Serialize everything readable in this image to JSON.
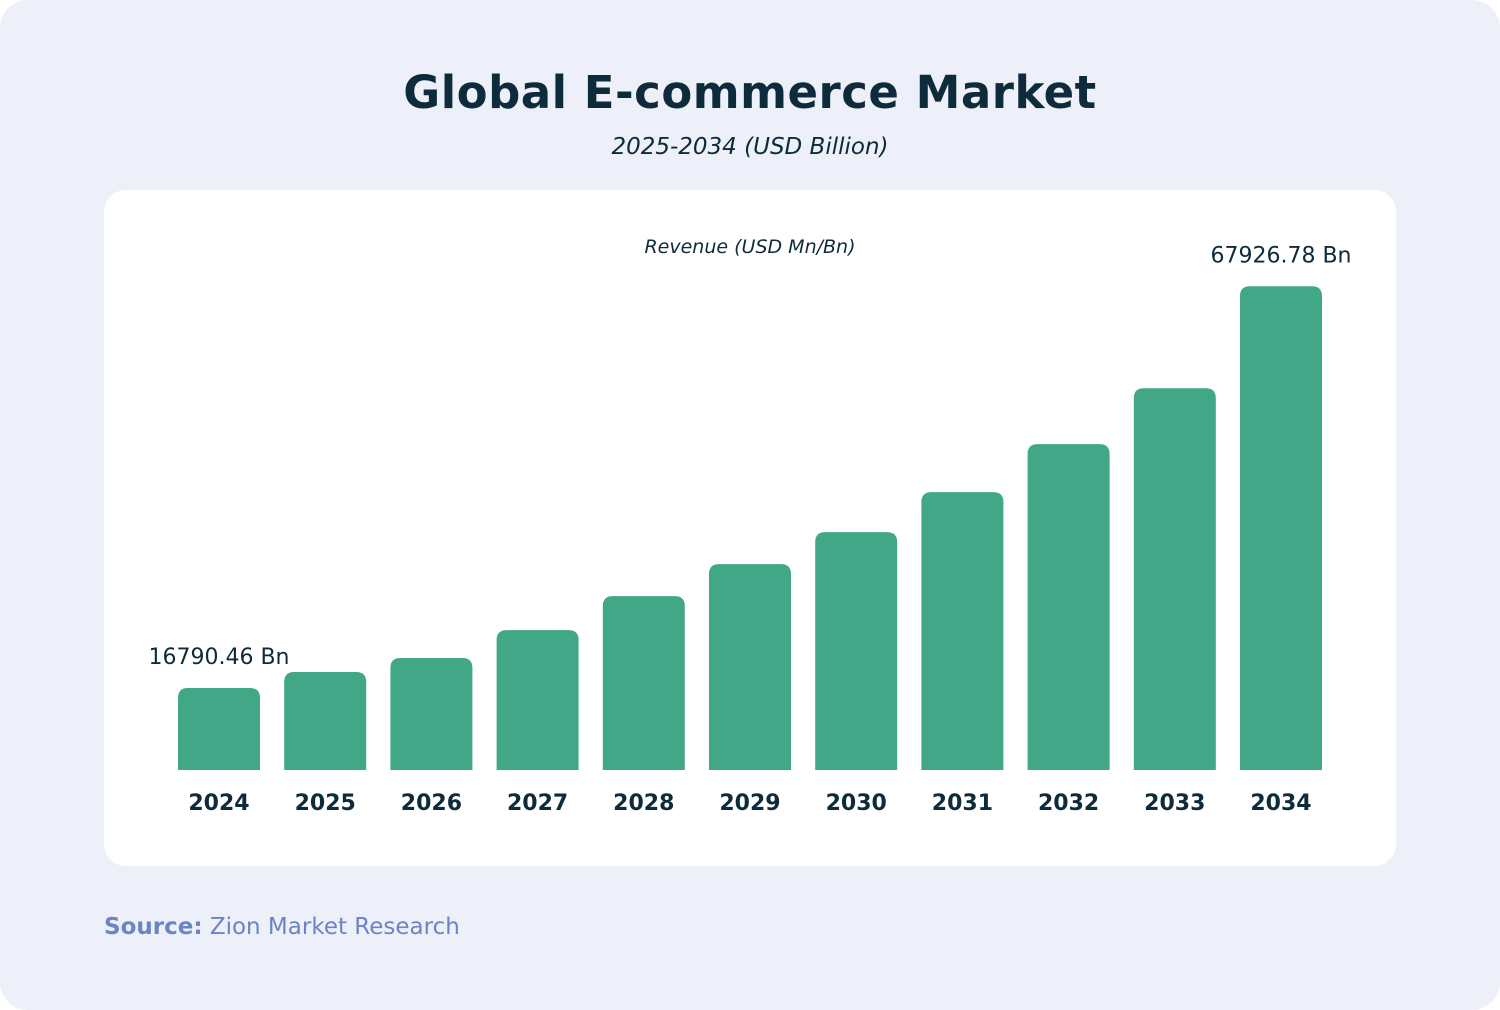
{
  "title": "Global E-commerce Market",
  "subtitle": "2025-2034 (USD Billion)",
  "source_label": "Source:",
  "source_text": " Zion Market Research",
  "colors": {
    "bar": "#42a787",
    "background": "#edf0f8",
    "text": "#0d2b3a",
    "source": "#6b84c4"
  },
  "chart_data": {
    "type": "bar",
    "title": "Global E-commerce Market",
    "subtitle": "2025-2034 (USD Billion)",
    "ylabel": "Revenue (USD Mn/Bn)",
    "xlabel": "",
    "categories": [
      "2024",
      "2025",
      "2026",
      "2027",
      "2028",
      "2029",
      "2030",
      "2031",
      "2032",
      "2033",
      "2034"
    ],
    "values": [
      16790.46,
      18830,
      20610,
      24170,
      28490,
      32560,
      36630,
      41720,
      47830,
      54950,
      67926.78
    ],
    "data_labels": {
      "2024": "16790.46 Bn",
      "2034": "67926.78 Bn"
    },
    "ylim": [
      6360,
      70000
    ],
    "grid": false,
    "axis_visible": false
  }
}
